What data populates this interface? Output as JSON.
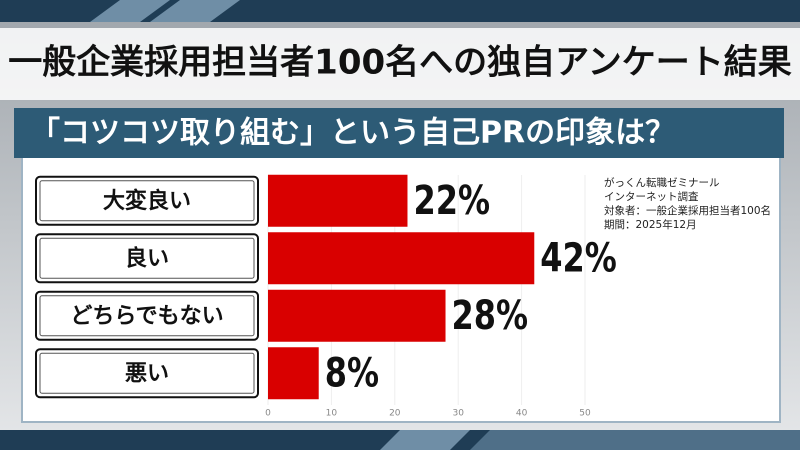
{
  "header": "一般企業採用担当者100名への独自アンケート結果",
  "chart_data": {
    "type": "bar",
    "orientation": "horizontal",
    "title": "「コツコツ取り組む」という自己PRの印象は？",
    "categories": [
      "大変良い",
      "良い",
      "どちらでもない",
      "悪い"
    ],
    "values": [
      22,
      42,
      28,
      8
    ],
    "value_labels": [
      "22%",
      "42%",
      "28%",
      "8%"
    ],
    "color": "#d90000",
    "xlim": [
      0,
      50
    ],
    "xticks": [
      0,
      10,
      20,
      30,
      40,
      50
    ],
    "annotations": [
      "がっくん転職ゼミナール",
      "インターネット調査",
      "対象者：一般企業採用担当者100名",
      "期間：2025年12月"
    ]
  }
}
